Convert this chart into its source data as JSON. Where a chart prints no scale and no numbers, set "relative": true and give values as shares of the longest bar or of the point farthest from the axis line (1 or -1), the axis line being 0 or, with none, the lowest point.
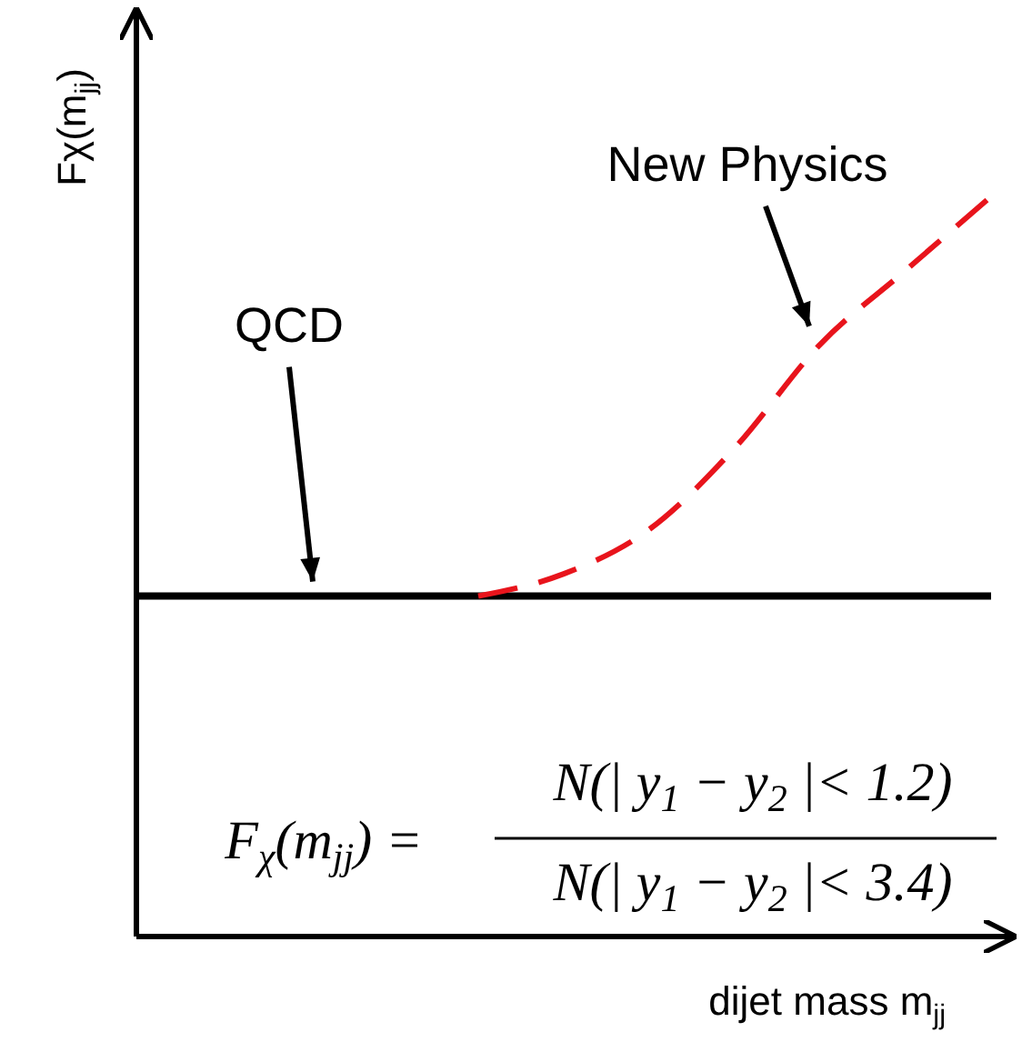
{
  "chart_data": {
    "type": "line",
    "relative": true,
    "legend": false,
    "grid": false,
    "tick_labels": false,
    "marker": "none",
    "ylabel": "Fχ(m$_{jj}$)",
    "xlabel": "dijet mass m$_{jj}$",
    "categories": [
      null,
      null,
      null,
      null,
      null,
      null,
      null,
      null,
      null,
      null,
      null
    ],
    "series": [
      {
        "name": "QCD",
        "color": "#000000",
        "line_style": "solid",
        "values": [
          0.46,
          0.46,
          0.46,
          0.46,
          0.46,
          0.46,
          0.46,
          0.46,
          0.46,
          0.46,
          0.46
        ]
      },
      {
        "name": "New Physics",
        "color": "#e8141c",
        "line_style": "dashed",
        "values": [
          null,
          null,
          null,
          null,
          0.46,
          0.49,
          0.55,
          0.66,
          0.8,
          0.9,
          1
        ]
      }
    ],
    "annotations": [
      "F$_{χ}$(m$_{jj}$) =",
      "N(| y$_{1}$ − y$_{2}$ |< 1.2)",
      "N(| y$_{1}$ − y$_{2}$ |< 3.4)"
    ]
  }
}
